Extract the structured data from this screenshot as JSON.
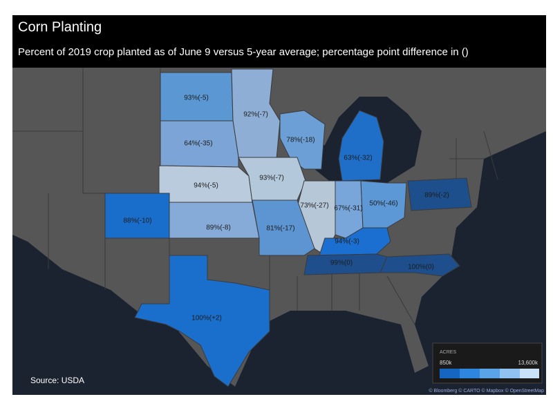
{
  "header": {
    "title": "Corn Planting",
    "subtitle": "Percent of 2019 crop planted as of June 9 versus 5-year average; percentage point difference in ()"
  },
  "states": [
    {
      "label": "93%(-5)"
    },
    {
      "label": "92%(-7)"
    },
    {
      "label": "64%(-35)"
    },
    {
      "label": "78%(-18)"
    },
    {
      "label": "63%(-32)"
    },
    {
      "label": "94%(-5)"
    },
    {
      "label": "93%(-7)"
    },
    {
      "label": "89%(-2)"
    },
    {
      "label": "73%(-27)"
    },
    {
      "label": "67%(-31)"
    },
    {
      "label": "50%(-46)"
    },
    {
      "label": "88%(-10)"
    },
    {
      "label": "89%(-8)"
    },
    {
      "label": "81%(-17)"
    },
    {
      "label": "94%(-3)"
    },
    {
      "label": "99%(0)"
    },
    {
      "label": "100%(0)"
    },
    {
      "label": "100%(+2)"
    }
  ],
  "legend": {
    "title": "ACRES",
    "min": "850k",
    "max": "13,600k"
  },
  "footer": {
    "source": "Source: USDA",
    "attribution": "© Bloomberg © CARTO © Mapbox © OpenStreetMap"
  }
}
